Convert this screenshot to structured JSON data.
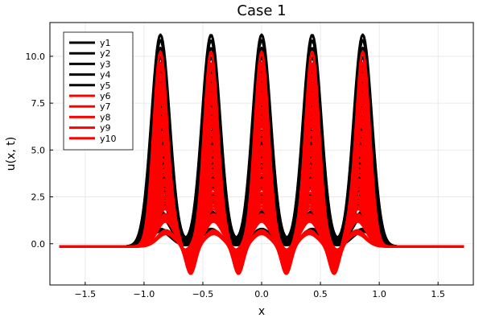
{
  "chart_data": {
    "type": "line",
    "title": "Case 1",
    "xlabel": "x",
    "ylabel": "u(x, t)",
    "xlim": [
      -1.8,
      1.8
    ],
    "ylim": [
      -2.2,
      11.8
    ],
    "xticks": [
      -1.5,
      -1.0,
      -0.5,
      0.0,
      0.5,
      1.0,
      1.5
    ],
    "xtick_labels": [
      "−1.5",
      "−1.0",
      "−0.5",
      "0.0",
      "0.5",
      "1.0",
      "1.5"
    ],
    "yticks": [
      0.0,
      2.5,
      5.0,
      7.5,
      10.0
    ],
    "ytick_labels": [
      "0.0",
      "2.5",
      "5.0",
      "7.5",
      "10.0"
    ],
    "grid": true,
    "legend_position": "top-left",
    "peak_centers": [
      -0.86,
      -0.43,
      0.0,
      0.43,
      0.86
    ],
    "baseline": -0.15,
    "series": [
      {
        "name": "y1",
        "color": "#000000",
        "amplitude": 11.3
      },
      {
        "name": "y2",
        "color": "#000000",
        "amplitude": 11.0
      },
      {
        "name": "y3",
        "color": "#000000",
        "amplitude": 10.6
      },
      {
        "name": "y4",
        "color": "#000000",
        "amplitude": 10.1
      },
      {
        "name": "y5",
        "color": "#000000",
        "amplitude": 9.6
      },
      {
        "name": "y6",
        "color": "#ff0000",
        "amplitude": 10.4
      },
      {
        "name": "y7",
        "color": "#ff0000",
        "amplitude": 9.8
      },
      {
        "name": "y8",
        "color": "#ff0000",
        "amplitude": 9.2
      },
      {
        "name": "y9",
        "color": "#ff0000",
        "amplitude": 8.6
      },
      {
        "name": "y10",
        "color": "#ff0000",
        "amplitude": 8.0
      }
    ]
  }
}
